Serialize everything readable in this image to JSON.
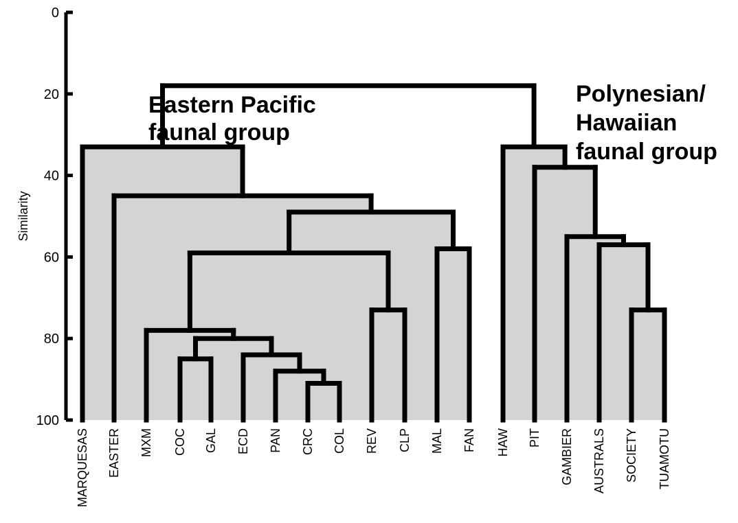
{
  "axis": {
    "title": "Similarity",
    "ticks": [
      0,
      20,
      40,
      60,
      80,
      100
    ]
  },
  "leaves": [
    "MARQUESAS",
    "EASTER",
    "MXM",
    "COC",
    "GAL",
    "ECD",
    "PAN",
    "CRC",
    "COL",
    "REV",
    "CLP",
    "MAL",
    "FAN",
    "HAW",
    "PIT",
    "GAMBIER",
    "AUSTRALS",
    "SOCIETY",
    "TUAMOTU"
  ],
  "groups": {
    "eastern_line1": "Eastern Pacific",
    "eastern_line2": "faunal group",
    "poly_line1": "Polynesian/",
    "poly_line2": "Hawaiian",
    "poly_line3": "faunal group"
  },
  "merges": [
    {
      "a": "COC",
      "b": "GAL",
      "sim": 85
    },
    {
      "a": "CRC",
      "b": "COL",
      "sim": 91
    },
    {
      "a": "PAN",
      "b": "CRC+COL",
      "sim": 88
    },
    {
      "a": "ECD",
      "b": "PAN+CRC+COL",
      "sim": 84
    },
    {
      "a": "COC+GAL",
      "b": "ECD+PAN+CRC+COL",
      "sim": 80
    },
    {
      "a": "MXM",
      "b": "COC..COL",
      "sim": 78
    },
    {
      "a": "REV",
      "b": "CLP",
      "sim": 73
    },
    {
      "a": "MXM..COL",
      "b": "REV+CLP",
      "sim": 59
    },
    {
      "a": "MAL",
      "b": "FAN",
      "sim": 58
    },
    {
      "a": "MXM..CLP",
      "b": "MAL+FAN",
      "sim": 49
    },
    {
      "a": "EASTER",
      "b": "MXM..FAN",
      "sim": 45
    },
    {
      "a": "MARQUESAS",
      "b": "EASTER..FAN",
      "sim": 33
    },
    {
      "a": "SOCIETY",
      "b": "TUAMOTU",
      "sim": 73
    },
    {
      "a": "AUSTRALS",
      "b": "SOCIETY+TUAMOTU",
      "sim": 57
    },
    {
      "a": "GAMBIER",
      "b": "AUSTRALS..TUAMOTU",
      "sim": 55
    },
    {
      "a": "PIT",
      "b": "GAMBIER..TUAMOTU",
      "sim": 38
    },
    {
      "a": "HAW",
      "b": "PIT..TUAMOTU",
      "sim": 33
    },
    {
      "a": "Eastern Pacific",
      "b": "Polynesian/Hawaiian",
      "sim": 18
    }
  ]
}
